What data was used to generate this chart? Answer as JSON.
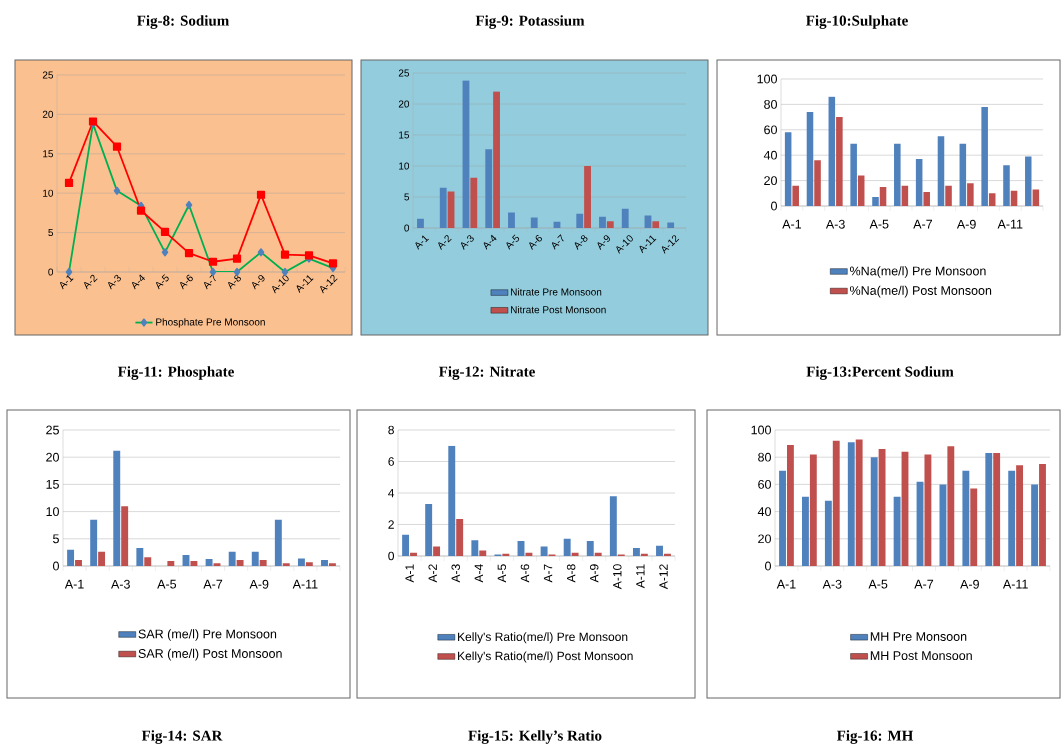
{
  "chart_data": [
    {
      "type": "line",
      "title": "Fig-8:  Sodium",
      "annotations": [
        "Fig-11: Phosphate"
      ],
      "categories": [
        "A-1",
        "A-2",
        "A-3",
        "A-4",
        "A-5",
        "A-6",
        "A-7",
        "A-8",
        "A-9",
        "A-10",
        "A-11",
        "A-12"
      ],
      "ylim": [
        0,
        25
      ],
      "yticks": [
        0,
        5,
        10,
        15,
        20,
        25
      ],
      "grid": "y",
      "legend": "bottom",
      "line_style": "solid",
      "series": [
        {
          "name": "Phosphate Pre Monsoon",
          "color": "#00b050",
          "marker": "diamond",
          "values": [
            0,
            18.8,
            10.3,
            8.4,
            2.5,
            8.5,
            0,
            0,
            2.5,
            0,
            1.7,
            0.5
          ]
        },
        {
          "color": "#ff0000",
          "marker": "square",
          "values": [
            11.3,
            19.1,
            15.9,
            7.8,
            5.1,
            2.4,
            1.3,
            1.7,
            9.8,
            2.2,
            2.1,
            1.1
          ]
        }
      ]
    },
    {
      "type": "bar",
      "title": "Fig-9: Potassium",
      "annotations": [
        "Fig-12: Nitrate"
      ],
      "categories": [
        "A-1",
        "A-2",
        "A-3",
        "A-4",
        "A-5",
        "A-6",
        "A-7",
        "A-8",
        "A-9",
        "A-10",
        "A-11",
        "A-12"
      ],
      "ylim": [
        0,
        25
      ],
      "yticks": [
        0,
        5,
        10,
        15,
        20,
        25
      ],
      "grid": "y",
      "legend": "bottom",
      "series": [
        {
          "name": "Nitrate Pre Monsoon",
          "color": "#4f81bd",
          "values": [
            1.5,
            6.5,
            23.8,
            12.7,
            2.5,
            1.7,
            1.0,
            2.3,
            1.8,
            3.1,
            2.0,
            0.9
          ]
        },
        {
          "name": "Nitrate Post Monsoon",
          "color": "#c0504d",
          "values": [
            null,
            5.9,
            8.1,
            22.0,
            null,
            null,
            null,
            10.0,
            1.1,
            null,
            1.1,
            null
          ]
        }
      ]
    },
    {
      "type": "bar",
      "title": "Fig-10:Sulphate",
      "annotations": [
        "Fig-13:Percent Sodium"
      ],
      "categories": [
        "A-1",
        null,
        "A-3",
        null,
        "A-5",
        null,
        "A-7",
        null,
        "A-9",
        null,
        "A-11",
        null
      ],
      "ylim": [
        0,
        100
      ],
      "yticks": [
        0,
        20,
        40,
        60,
        80,
        100
      ],
      "grid": "y",
      "legend": "bottom",
      "series": [
        {
          "name": "%Na(me/l) Pre Monsoon",
          "color": "#4f81bd",
          "values": [
            58,
            74,
            86,
            49,
            7,
            49,
            37,
            55,
            49,
            78,
            32,
            39
          ]
        },
        {
          "name": "%Na(me/l) Post Monsoon",
          "color": "#c0504d",
          "values": [
            16,
            36,
            70,
            24,
            15,
            16,
            11,
            16,
            18,
            10,
            12,
            13
          ]
        }
      ]
    },
    {
      "type": "bar",
      "annotations": [
        "Fig-14: SAR"
      ],
      "categories": [
        "A-1",
        null,
        "A-3",
        null,
        "A-5",
        null,
        "A-7",
        null,
        "A-9",
        null,
        "A-11",
        null
      ],
      "ylim": [
        0,
        25
      ],
      "yticks": [
        0,
        5,
        10,
        15,
        20,
        25
      ],
      "grid": "y",
      "legend": "bottom",
      "series": [
        {
          "name": "SAR (me/l) Pre Monsoon",
          "color": "#4f81bd",
          "values": [
            3.0,
            8.5,
            21.2,
            3.3,
            null,
            2.0,
            1.3,
            2.6,
            2.6,
            8.5,
            1.4,
            1.1
          ]
        },
        {
          "name": "SAR (me/l) Post Monsoon",
          "color": "#c0504d",
          "values": [
            1.1,
            2.6,
            11.0,
            1.6,
            0.9,
            0.9,
            0.5,
            1.1,
            1.1,
            0.5,
            0.7,
            0.5
          ]
        }
      ]
    },
    {
      "type": "bar",
      "annotations": [
        "Fig-15: Kelly’s Ratio"
      ],
      "categories": [
        "A-1",
        "A-2",
        "A-3",
        "A-4",
        "A-5",
        "A-6",
        "A-7",
        "A-8",
        "A-9",
        "A-10",
        "A-11",
        "A-12"
      ],
      "ylim": [
        0,
        8
      ],
      "yticks": [
        0,
        2,
        4,
        6,
        8
      ],
      "grid": "y",
      "legend": "bottom",
      "series": [
        {
          "name": "Kelly's Ratio(me/l) Pre Monsoon",
          "color": "#4f81bd",
          "values": [
            1.35,
            3.3,
            7.0,
            1.0,
            0.1,
            0.95,
            0.6,
            1.1,
            0.95,
            3.8,
            0.5,
            0.65
          ]
        },
        {
          "name": "Kelly's Ratio(me/l) Post Monsoon",
          "color": "#c0504d",
          "values": [
            0.2,
            0.6,
            2.35,
            0.35,
            0.15,
            0.2,
            0.1,
            0.2,
            0.2,
            0.1,
            0.15,
            0.15
          ]
        }
      ]
    },
    {
      "type": "bar",
      "annotations": [
        "Fig-16: MH"
      ],
      "categories": [
        "A-1",
        null,
        "A-3",
        null,
        "A-5",
        null,
        "A-7",
        null,
        "A-9",
        null,
        "A-11",
        null
      ],
      "ylim": [
        0,
        100
      ],
      "yticks": [
        0,
        20,
        40,
        60,
        80,
        100
      ],
      "grid": "y",
      "legend": "bottom",
      "series": [
        {
          "name": "MH Pre Monsoon",
          "color": "#4f81bd",
          "values": [
            70,
            51,
            48,
            91,
            80,
            51,
            62,
            60,
            70,
            83,
            70,
            60
          ]
        },
        {
          "name": "MH Post Monsoon",
          "color": "#c0504d",
          "values": [
            89,
            82,
            92,
            93,
            86,
            84,
            82,
            88,
            57,
            83,
            74,
            75
          ]
        }
      ]
    }
  ]
}
